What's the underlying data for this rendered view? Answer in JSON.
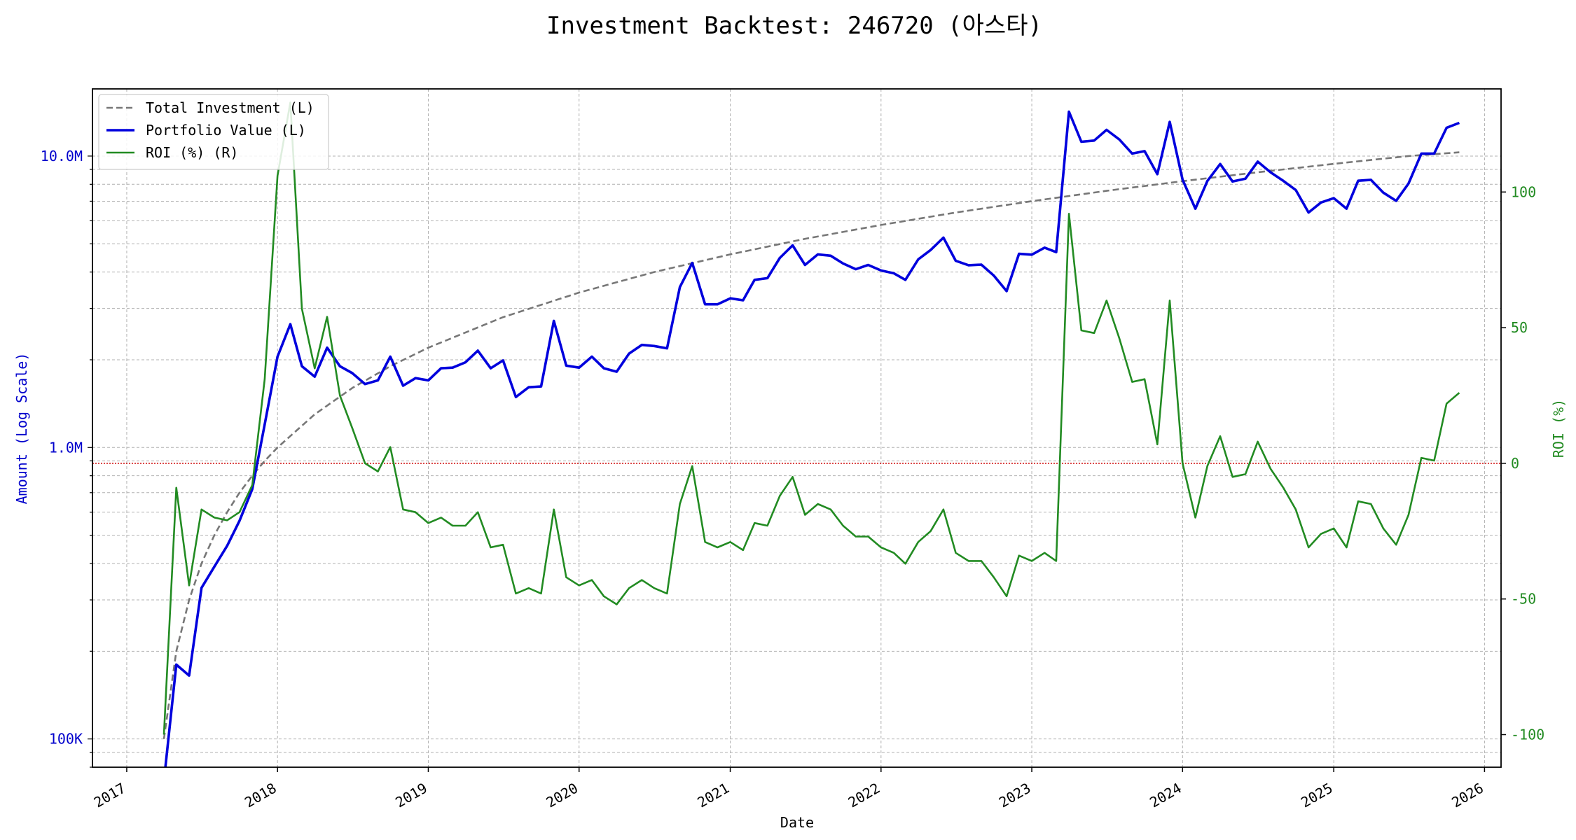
{
  "chart_data": {
    "type": "line",
    "title": "Investment Backtest: 246720 (아스타)",
    "xlabel": "Date",
    "ylabel_left": "Amount (Log Scale)",
    "ylabel_right": "ROI (%)",
    "y_left_scale": "log",
    "y_left_ticks": [
      {
        "value": 100000,
        "label": "100K"
      },
      {
        "value": 1000000,
        "label": "1.0M"
      },
      {
        "value": 10000000,
        "label": "10.0M"
      }
    ],
    "y_right_ticks": [
      -100,
      -50,
      0,
      50,
      100
    ],
    "x_ticks": [
      "2017",
      "2018",
      "2019",
      "2020",
      "2021",
      "2022",
      "2023",
      "2024",
      "2025",
      "2026"
    ],
    "x_range": [
      "2016-10-10",
      "2026-02-10"
    ],
    "y_left_range": [
      80000,
      17000000
    ],
    "y_right_range": [
      -112,
      138
    ],
    "grid": true,
    "legend_position": "upper left",
    "reference_line": {
      "axis": "right",
      "value": 0,
      "color": "#cc0000",
      "style": "dotted"
    },
    "colors": {
      "invest": "#777777",
      "value": "#0000dd",
      "roi": "#228b22",
      "left_axis": "#0000cc",
      "right_axis": "#228b22"
    },
    "series": [
      {
        "name": "Total Investment (L)",
        "axis": "left",
        "style": "dashed",
        "points": [
          [
            "2017-04-01",
            100000
          ],
          [
            "2017-05-01",
            200000
          ],
          [
            "2017-06-01",
            300000
          ],
          [
            "2017-07-01",
            400000
          ],
          [
            "2017-08-01",
            500000
          ],
          [
            "2017-09-01",
            600000
          ],
          [
            "2017-10-01",
            700000
          ],
          [
            "2017-11-01",
            800000
          ],
          [
            "2017-12-01",
            900000
          ],
          [
            "2018-01-01",
            1000000
          ],
          [
            "2018-04-01",
            1300000
          ],
          [
            "2018-07-01",
            1600000
          ],
          [
            "2018-10-01",
            1900000
          ],
          [
            "2019-01-01",
            2200000
          ],
          [
            "2019-07-01",
            2800000
          ],
          [
            "2020-01-01",
            3400000
          ],
          [
            "2020-07-01",
            4000000
          ],
          [
            "2021-01-01",
            4600000
          ],
          [
            "2021-07-01",
            5200000
          ],
          [
            "2022-01-01",
            5800000
          ],
          [
            "2022-07-01",
            6400000
          ],
          [
            "2023-01-01",
            7000000
          ],
          [
            "2023-07-01",
            7600000
          ],
          [
            "2024-01-01",
            8200000
          ],
          [
            "2024-07-01",
            8800000
          ],
          [
            "2025-01-01",
            9400000
          ],
          [
            "2025-07-01",
            10000000
          ],
          [
            "2025-11-01",
            10300000
          ]
        ]
      },
      {
        "name": "Portfolio Value (L)",
        "axis": "left",
        "style": "solid",
        "points": [
          [
            "2017-04-01",
            0
          ],
          [
            "2017-05-01",
            180000
          ],
          [
            "2017-06-01",
            165000
          ],
          [
            "2017-07-01",
            330000
          ],
          [
            "2017-08-01",
            390000
          ],
          [
            "2017-09-01",
            460000
          ],
          [
            "2017-10-01",
            560000
          ],
          [
            "2017-11-01",
            720000
          ],
          [
            "2017-12-01",
            1200000
          ],
          [
            "2018-01-01",
            2050000
          ],
          [
            "2018-02-01",
            2650000
          ],
          [
            "2018-03-01",
            1900000
          ],
          [
            "2018-04-01",
            1750000
          ],
          [
            "2018-05-01",
            2200000
          ],
          [
            "2018-06-01",
            1900000
          ],
          [
            "2018-07-01",
            1800000
          ],
          [
            "2018-08-01",
            1650000
          ],
          [
            "2018-09-01",
            1700000
          ],
          [
            "2018-10-01",
            2050000
          ],
          [
            "2018-11-01",
            1630000
          ],
          [
            "2018-12-01",
            1730000
          ],
          [
            "2019-01-01",
            1700000
          ],
          [
            "2019-02-01",
            1870000
          ],
          [
            "2019-03-01",
            1880000
          ],
          [
            "2019-04-01",
            1960000
          ],
          [
            "2019-05-01",
            2150000
          ],
          [
            "2019-06-01",
            1870000
          ],
          [
            "2019-07-01",
            1990000
          ],
          [
            "2019-08-01",
            1490000
          ],
          [
            "2019-09-01",
            1610000
          ],
          [
            "2019-10-01",
            1620000
          ],
          [
            "2019-11-01",
            2720000
          ],
          [
            "2019-12-01",
            1910000
          ],
          [
            "2020-01-01",
            1880000
          ],
          [
            "2020-02-01",
            2050000
          ],
          [
            "2020-03-01",
            1870000
          ],
          [
            "2020-04-01",
            1820000
          ],
          [
            "2020-05-01",
            2100000
          ],
          [
            "2020-06-01",
            2250000
          ],
          [
            "2020-07-01",
            2230000
          ],
          [
            "2020-08-01",
            2190000
          ],
          [
            "2020-09-01",
            3550000
          ],
          [
            "2020-10-01",
            4300000
          ],
          [
            "2020-11-01",
            3100000
          ],
          [
            "2020-12-01",
            3100000
          ],
          [
            "2021-01-01",
            3250000
          ],
          [
            "2021-02-01",
            3200000
          ],
          [
            "2021-03-01",
            3760000
          ],
          [
            "2021-04-01",
            3810000
          ],
          [
            "2021-05-01",
            4470000
          ],
          [
            "2021-06-01",
            4940000
          ],
          [
            "2021-07-01",
            4230000
          ],
          [
            "2021-08-01",
            4600000
          ],
          [
            "2021-09-01",
            4550000
          ],
          [
            "2021-10-01",
            4280000
          ],
          [
            "2021-11-01",
            4090000
          ],
          [
            "2021-12-01",
            4230000
          ],
          [
            "2022-01-01",
            4050000
          ],
          [
            "2022-02-01",
            3960000
          ],
          [
            "2022-03-01",
            3760000
          ],
          [
            "2022-04-01",
            4420000
          ],
          [
            "2022-05-01",
            4760000
          ],
          [
            "2022-06-01",
            5250000
          ],
          [
            "2022-07-01",
            4370000
          ],
          [
            "2022-08-01",
            4220000
          ],
          [
            "2022-09-01",
            4240000
          ],
          [
            "2022-10-01",
            3890000
          ],
          [
            "2022-11-01",
            3440000
          ],
          [
            "2022-12-01",
            4620000
          ],
          [
            "2023-01-01",
            4590000
          ],
          [
            "2023-02-01",
            4850000
          ],
          [
            "2023-03-01",
            4680000
          ],
          [
            "2023-04-01",
            14200000
          ],
          [
            "2023-05-01",
            11200000
          ],
          [
            "2023-06-01",
            11300000
          ],
          [
            "2023-07-01",
            12300000
          ],
          [
            "2023-08-01",
            11400000
          ],
          [
            "2023-09-01",
            10200000
          ],
          [
            "2023-10-01",
            10400000
          ],
          [
            "2023-11-01",
            8670000
          ],
          [
            "2023-12-01",
            13100000
          ],
          [
            "2024-01-01",
            8300000
          ],
          [
            "2024-02-01",
            6600000
          ],
          [
            "2024-03-01",
            8210000
          ],
          [
            "2024-04-01",
            9390000
          ],
          [
            "2024-05-01",
            8180000
          ],
          [
            "2024-06-01",
            8360000
          ],
          [
            "2024-07-01",
            9570000
          ],
          [
            "2024-08-01",
            8800000
          ],
          [
            "2024-09-01",
            8220000
          ],
          [
            "2024-10-01",
            7650000
          ],
          [
            "2024-11-01",
            6400000
          ],
          [
            "2024-12-01",
            6930000
          ],
          [
            "2025-01-01",
            7170000
          ],
          [
            "2025-02-01",
            6600000
          ],
          [
            "2025-03-01",
            8230000
          ],
          [
            "2025-04-01",
            8290000
          ],
          [
            "2025-05-01",
            7490000
          ],
          [
            "2025-06-01",
            7020000
          ],
          [
            "2025-07-01",
            8050000
          ],
          [
            "2025-08-01",
            10200000
          ],
          [
            "2025-09-01",
            10200000
          ],
          [
            "2025-10-01",
            12500000
          ],
          [
            "2025-11-01",
            13000000
          ]
        ]
      },
      {
        "name": "ROI (%) (R)",
        "axis": "right",
        "style": "solid",
        "points": [
          [
            "2017-04-01",
            -100
          ],
          [
            "2017-05-01",
            -9
          ],
          [
            "2017-06-01",
            -45
          ],
          [
            "2017-07-01",
            -17
          ],
          [
            "2017-08-01",
            -20
          ],
          [
            "2017-09-01",
            -21
          ],
          [
            "2017-10-01",
            -18
          ],
          [
            "2017-11-01",
            -8
          ],
          [
            "2017-12-01",
            31
          ],
          [
            "2018-01-01",
            106
          ],
          [
            "2018-02-01",
            133
          ],
          [
            "2018-03-01",
            57
          ],
          [
            "2018-04-01",
            35
          ],
          [
            "2018-05-01",
            54
          ],
          [
            "2018-06-01",
            25
          ],
          [
            "2018-07-01",
            13
          ],
          [
            "2018-08-01",
            0
          ],
          [
            "2018-09-01",
            -3
          ],
          [
            "2018-10-01",
            6
          ],
          [
            "2018-11-01",
            -17
          ],
          [
            "2018-12-01",
            -18
          ],
          [
            "2019-01-01",
            -22
          ],
          [
            "2019-02-01",
            -20
          ],
          [
            "2019-03-01",
            -23
          ],
          [
            "2019-04-01",
            -23
          ],
          [
            "2019-05-01",
            -18
          ],
          [
            "2019-06-01",
            -31
          ],
          [
            "2019-07-01",
            -30
          ],
          [
            "2019-08-01",
            -48
          ],
          [
            "2019-09-01",
            -46
          ],
          [
            "2019-10-01",
            -48
          ],
          [
            "2019-11-01",
            -17
          ],
          [
            "2019-12-01",
            -42
          ],
          [
            "2020-01-01",
            -45
          ],
          [
            "2020-02-01",
            -43
          ],
          [
            "2020-03-01",
            -49
          ],
          [
            "2020-04-01",
            -52
          ],
          [
            "2020-05-01",
            -46
          ],
          [
            "2020-06-01",
            -43
          ],
          [
            "2020-07-01",
            -46
          ],
          [
            "2020-08-01",
            -48
          ],
          [
            "2020-09-01",
            -15
          ],
          [
            "2020-10-01",
            -1
          ],
          [
            "2020-11-01",
            -29
          ],
          [
            "2020-12-01",
            -31
          ],
          [
            "2021-01-01",
            -29
          ],
          [
            "2021-02-01",
            -32
          ],
          [
            "2021-03-01",
            -22
          ],
          [
            "2021-04-01",
            -23
          ],
          [
            "2021-05-01",
            -12
          ],
          [
            "2021-06-01",
            -5
          ],
          [
            "2021-07-01",
            -19
          ],
          [
            "2021-08-01",
            -15
          ],
          [
            "2021-09-01",
            -17
          ],
          [
            "2021-10-01",
            -23
          ],
          [
            "2021-11-01",
            -27
          ],
          [
            "2021-12-01",
            -27
          ],
          [
            "2022-01-01",
            -31
          ],
          [
            "2022-02-01",
            -33
          ],
          [
            "2022-03-01",
            -37
          ],
          [
            "2022-04-01",
            -29
          ],
          [
            "2022-05-01",
            -25
          ],
          [
            "2022-06-01",
            -17
          ],
          [
            "2022-07-01",
            -33
          ],
          [
            "2022-08-01",
            -36
          ],
          [
            "2022-09-01",
            -36
          ],
          [
            "2022-10-01",
            -42
          ],
          [
            "2022-11-01",
            -49
          ],
          [
            "2022-12-01",
            -34
          ],
          [
            "2023-01-01",
            -36
          ],
          [
            "2023-02-01",
            -33
          ],
          [
            "2023-03-01",
            -36
          ],
          [
            "2023-04-01",
            92
          ],
          [
            "2023-05-01",
            49
          ],
          [
            "2023-06-01",
            48
          ],
          [
            "2023-07-01",
            60
          ],
          [
            "2023-08-01",
            46
          ],
          [
            "2023-09-01",
            30
          ],
          [
            "2023-10-01",
            31
          ],
          [
            "2023-11-01",
            7
          ],
          [
            "2023-12-01",
            60
          ],
          [
            "2024-01-01",
            0
          ],
          [
            "2024-02-01",
            -20
          ],
          [
            "2024-03-01",
            -1
          ],
          [
            "2024-04-01",
            10
          ],
          [
            "2024-05-01",
            -5
          ],
          [
            "2024-06-01",
            -4
          ],
          [
            "2024-07-01",
            8
          ],
          [
            "2024-08-01",
            -2
          ],
          [
            "2024-09-01",
            -9
          ],
          [
            "2024-10-01",
            -17
          ],
          [
            "2024-11-01",
            -31
          ],
          [
            "2024-12-01",
            -26
          ],
          [
            "2025-01-01",
            -24
          ],
          [
            "2025-02-01",
            -31
          ],
          [
            "2025-03-01",
            -14
          ],
          [
            "2025-04-01",
            -15
          ],
          [
            "2025-05-01",
            -24
          ],
          [
            "2025-06-01",
            -30
          ],
          [
            "2025-07-01",
            -19
          ],
          [
            "2025-08-01",
            2
          ],
          [
            "2025-09-01",
            1
          ],
          [
            "2025-10-01",
            22
          ],
          [
            "2025-11-01",
            26
          ]
        ]
      }
    ]
  }
}
